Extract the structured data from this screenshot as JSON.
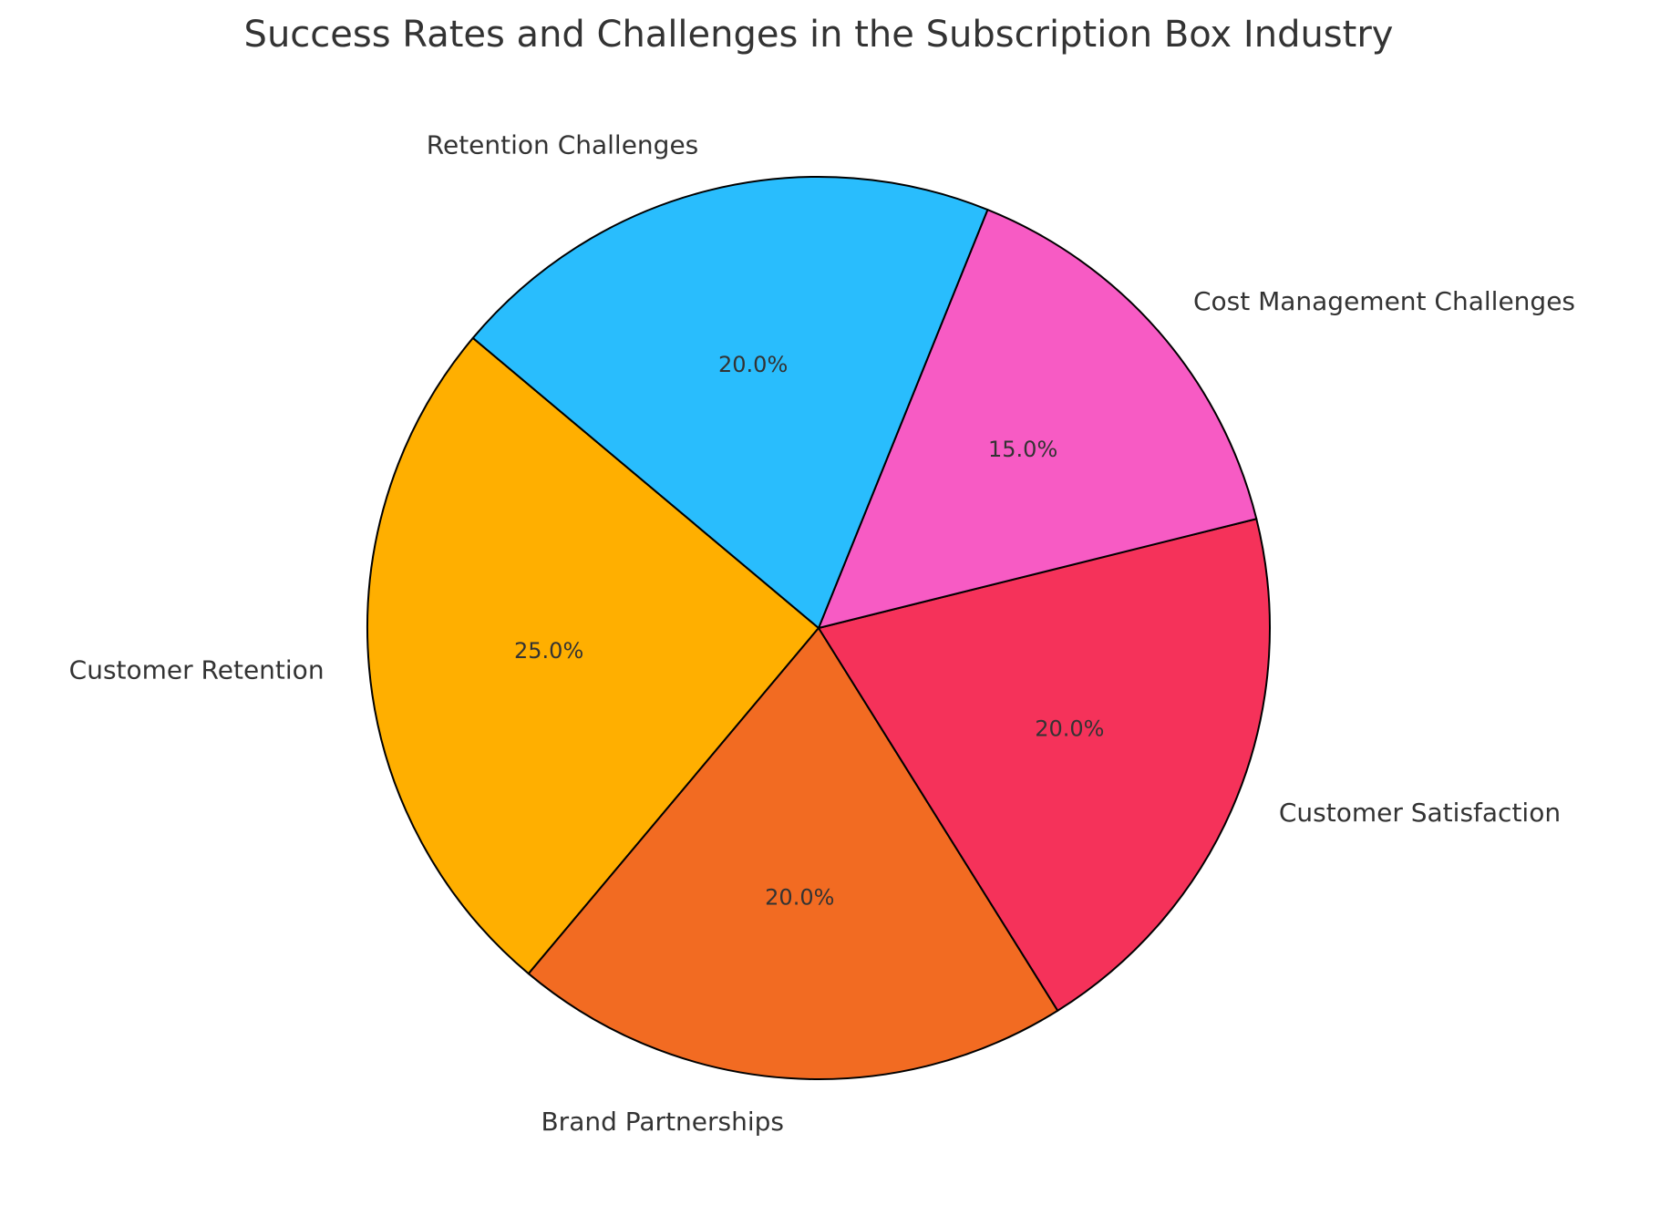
{
  "chart_data": {
    "type": "pie",
    "title": "Success Rates and Challenges in the Subscription Box Industry",
    "categories": [
      "Customer Retention",
      "Brand Partnerships",
      "Customer Satisfaction",
      "Cost Management Challenges",
      "Retention Challenges"
    ],
    "values": [
      25,
      20,
      20,
      15,
      20
    ],
    "value_labels": [
      "25.0%",
      "20.0%",
      "20.0%",
      "15.0%",
      "20.0%"
    ],
    "colors": [
      "#FFAF00",
      "#F26B22",
      "#F5325A",
      "#F75BC4",
      "#29BDFD"
    ],
    "start_angle": 140
  }
}
